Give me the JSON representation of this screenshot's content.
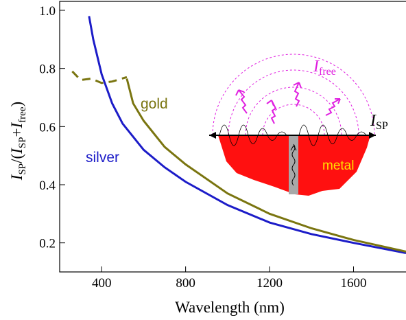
{
  "chart_data": {
    "type": "line",
    "xlabel": "Wavelength (nm)",
    "ylabel_parts": [
      "I",
      "SP",
      "/(",
      "I",
      "SP",
      "+",
      "I",
      "free",
      ")"
    ],
    "xlim": [
      200,
      1850
    ],
    "ylim": [
      0.1,
      1.0
    ],
    "xticks": [
      400,
      800,
      1200,
      1600
    ],
    "yticks": [
      0.2,
      0.4,
      0.6,
      0.8,
      {
        "value": 1,
        "label": "1.0"
      }
    ],
    "grid": false,
    "series": [
      {
        "name": "silver",
        "color": "#1c1cc8",
        "x": [
          340,
          360,
          400,
          450,
          500,
          600,
          700,
          800,
          1000,
          1200,
          1400,
          1600,
          1850
        ],
        "values": [
          0.98,
          0.9,
          0.78,
          0.68,
          0.61,
          0.52,
          0.46,
          0.41,
          0.33,
          0.27,
          0.23,
          0.2,
          0.165
        ]
      },
      {
        "name": "gold",
        "color": "#7a7510",
        "x": [
          520,
          550,
          600,
          700,
          800,
          1000,
          1200,
          1400,
          1600,
          1850
        ],
        "values": [
          0.765,
          0.68,
          0.62,
          0.53,
          0.47,
          0.37,
          0.3,
          0.25,
          0.21,
          0.17
        ]
      },
      {
        "color": "#7a7510",
        "dash": true,
        "x": [
          260,
          300,
          350,
          400,
          450,
          520
        ],
        "values": [
          0.79,
          0.76,
          0.765,
          0.75,
          0.755,
          0.77
        ]
      }
    ],
    "inset": {
      "free_label": [
        "I",
        "free"
      ],
      "sp_label": [
        "I",
        "SP"
      ],
      "metal_label": "metal"
    }
  }
}
